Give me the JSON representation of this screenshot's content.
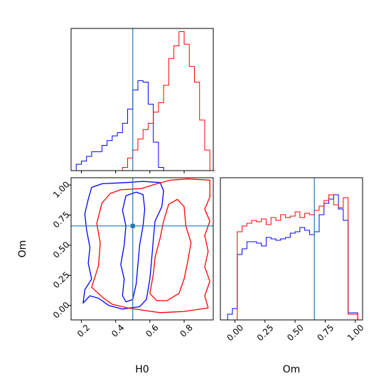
{
  "chart_data": {
    "type": "corner",
    "parameters": [
      "H0",
      "Om"
    ],
    "truth": {
      "H0": 0.5,
      "Om": 0.66
    },
    "colors": {
      "blue": "#0000ff",
      "red": "#ff0000",
      "truth": "#1f77b4"
    },
    "panels": [
      {
        "id": "hist-H0",
        "type": "step-histogram",
        "xlim": [
          0.14,
          0.97
        ],
        "xticks": [
          0.2,
          0.4,
          0.6,
          0.8
        ],
        "xtick_labels_shown": false,
        "yticks_shown": false,
        "bins_edges_start": 0.14,
        "bin_width": 0.03,
        "series": [
          {
            "color": "blue",
            "counts": [
              0,
              0.04,
              0.06,
              0.09,
              0.12,
              0.12,
              0.16,
              0.19,
              0.22,
              0.24,
              0.3,
              0.39,
              0.51,
              0.57,
              0.56,
              0.42,
              0.18,
              0.02,
              0,
              0,
              0,
              0,
              0,
              0,
              0,
              0,
              0,
              0
            ]
          },
          {
            "color": "red",
            "counts": [
              0,
              0,
              0,
              0,
              0,
              0,
              0,
              0,
              0,
              0,
              0.02,
              0.08,
              0.13,
              0.2,
              0.26,
              0.3,
              0.37,
              0.43,
              0.54,
              0.71,
              0.79,
              0.88,
              0.8,
              0.66,
              0.56,
              0.32,
              0.13,
              0
            ]
          }
        ],
        "ylim": [
          0,
          0.9
        ]
      },
      {
        "id": "contour-H0-Om",
        "type": "contour",
        "xlim": [
          0.14,
          0.97
        ],
        "ylim": [
          -0.12,
          1.06
        ],
        "xticks": [
          0.2,
          0.4,
          0.6,
          0.8
        ],
        "xtick_labels": [
          "0.2",
          "0.4",
          "0.6",
          "0.8"
        ],
        "yticks": [
          0.0,
          0.25,
          0.5,
          0.75,
          1.0
        ],
        "ytick_labels": [
          "0.00",
          "0.25",
          "0.50",
          "0.75",
          "1.00"
        ],
        "xlabel": "H0",
        "ylabel": "Om",
        "contours": [
          {
            "color": "blue",
            "points": [
              [
                0.21,
                0.02
              ],
              [
                0.22,
                0.13
              ],
              [
                0.26,
                0.22
              ],
              [
                0.24,
                0.35
              ],
              [
                0.25,
                0.48
              ],
              [
                0.23,
                0.63
              ],
              [
                0.22,
                0.76
              ],
              [
                0.24,
                0.88
              ],
              [
                0.26,
                0.98
              ],
              [
                0.32,
                1.01
              ],
              [
                0.46,
                1.02
              ],
              [
                0.56,
                1.03
              ],
              [
                0.66,
                1.02
              ],
              [
                0.68,
                0.95
              ],
              [
                0.67,
                0.82
              ],
              [
                0.63,
                0.7
              ],
              [
                0.62,
                0.55
              ],
              [
                0.61,
                0.38
              ],
              [
                0.6,
                0.22
              ],
              [
                0.58,
                0.05
              ],
              [
                0.54,
                -0.01
              ],
              [
                0.44,
                -0.03
              ],
              [
                0.36,
                0.0
              ],
              [
                0.3,
                0.06
              ],
              [
                0.25,
                0.08
              ],
              [
                0.21,
                0.02
              ]
            ]
          },
          {
            "color": "blue",
            "points": [
              [
                0.44,
                0.08
              ],
              [
                0.45,
                0.22
              ],
              [
                0.43,
                0.34
              ],
              [
                0.45,
                0.5
              ],
              [
                0.46,
                0.66
              ],
              [
                0.44,
                0.79
              ],
              [
                0.46,
                0.91
              ],
              [
                0.52,
                0.94
              ],
              [
                0.56,
                0.92
              ],
              [
                0.57,
                0.8
              ],
              [
                0.56,
                0.66
              ],
              [
                0.54,
                0.5
              ],
              [
                0.53,
                0.34
              ],
              [
                0.52,
                0.18
              ],
              [
                0.5,
                0.05
              ],
              [
                0.46,
                0.03
              ],
              [
                0.44,
                0.08
              ]
            ]
          },
          {
            "color": "red",
            "points": [
              [
                0.26,
                0.15
              ],
              [
                0.3,
                0.33
              ],
              [
                0.31,
                0.52
              ],
              [
                0.29,
                0.68
              ],
              [
                0.32,
                0.85
              ],
              [
                0.37,
                0.93
              ],
              [
                0.43,
                0.96
              ],
              [
                0.55,
                0.97
              ],
              [
                0.64,
                1.01
              ],
              [
                0.72,
                1.04
              ],
              [
                0.82,
                1.05
              ],
              [
                0.95,
                1.04
              ],
              [
                0.95,
                0.9
              ],
              [
                0.92,
                0.8
              ],
              [
                0.95,
                0.7
              ],
              [
                0.92,
                0.58
              ],
              [
                0.94,
                0.45
              ],
              [
                0.92,
                0.32
              ],
              [
                0.95,
                0.2
              ],
              [
                0.92,
                0.08
              ],
              [
                0.94,
                -0.02
              ],
              [
                0.8,
                -0.05
              ],
              [
                0.66,
                -0.06
              ],
              [
                0.56,
                -0.04
              ],
              [
                0.47,
                -0.02
              ],
              [
                0.38,
                0.01
              ],
              [
                0.33,
                0.06
              ],
              [
                0.26,
                0.15
              ]
            ]
          },
          {
            "color": "red",
            "points": [
              [
                0.6,
                0.1
              ],
              [
                0.62,
                0.26
              ],
              [
                0.63,
                0.4
              ],
              [
                0.66,
                0.56
              ],
              [
                0.68,
                0.7
              ],
              [
                0.71,
                0.84
              ],
              [
                0.76,
                0.88
              ],
              [
                0.8,
                0.82
              ],
              [
                0.81,
                0.66
              ],
              [
                0.84,
                0.52
              ],
              [
                0.82,
                0.36
              ],
              [
                0.8,
                0.22
              ],
              [
                0.77,
                0.1
              ],
              [
                0.7,
                0.04
              ],
              [
                0.64,
                0.04
              ],
              [
                0.6,
                0.1
              ]
            ]
          }
        ]
      },
      {
        "id": "hist-Om",
        "type": "step-histogram",
        "xlim": [
          -0.12,
          1.06
        ],
        "xticks": [
          0.0,
          0.25,
          0.5,
          0.75,
          1.0
        ],
        "xtick_labels": [
          "0.00",
          "0.25",
          "0.50",
          "0.75",
          "1.00"
        ],
        "xlabel": "Om",
        "yticks_shown": false,
        "bins_edges_start": -0.06,
        "bin_width": 0.04,
        "series": [
          {
            "color": "blue",
            "counts": [
              0.04,
              0.08,
              0.46,
              0.5,
              0.55,
              0.55,
              0.54,
              0.52,
              0.58,
              0.57,
              0.56,
              0.57,
              0.58,
              0.61,
              0.62,
              0.65,
              0.63,
              0.6,
              0.62,
              0.74,
              0.82,
              0.85,
              0.88,
              0.78,
              0.7,
              0.05,
              0.05
            ]
          },
          {
            "color": "red",
            "counts": [
              0,
              0,
              0.62,
              0.66,
              0.68,
              0.7,
              0.69,
              0.71,
              0.67,
              0.72,
              0.7,
              0.74,
              0.72,
              0.73,
              0.76,
              0.72,
              0.75,
              0.74,
              0.77,
              0.8,
              0.84,
              0.88,
              0.81,
              0.79,
              0.86,
              0.04,
              0.04
            ]
          }
        ],
        "ylim": [
          0,
          1.0
        ]
      }
    ]
  }
}
